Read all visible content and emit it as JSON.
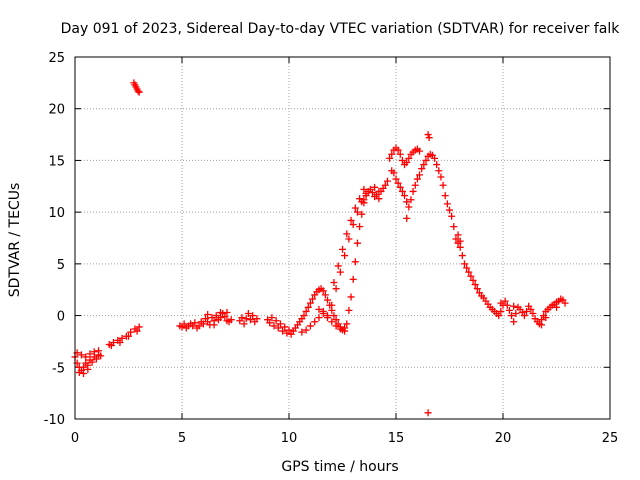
{
  "chart_data": {
    "type": "scatter",
    "title": "Day 091 of 2023, Sidereal Day-to-day VTEC variation (SDTVAR) for receiver falk",
    "xlabel": "GPS time / hours",
    "ylabel": "SDTVAR / TECUs",
    "xlim": [
      0,
      25
    ],
    "ylim": [
      -10,
      25
    ],
    "xticks": [
      "0",
      "5",
      "10",
      "15",
      "20",
      "25"
    ],
    "yticks": [
      "-10",
      "-5",
      "0",
      "5",
      "10",
      "15",
      "20",
      "25"
    ],
    "grid": true,
    "marker": "+",
    "color": "#ff0000",
    "series": [
      {
        "name": "falk",
        "points": [
          [
            0.0,
            -4.0
          ],
          [
            0.1,
            -4.6
          ],
          [
            0.2,
            -5.0
          ],
          [
            0.3,
            -5.3
          ],
          [
            0.4,
            -5.0
          ],
          [
            0.5,
            -4.6
          ],
          [
            0.6,
            -4.8
          ],
          [
            0.7,
            -4.3
          ],
          [
            0.8,
            -4.5
          ],
          [
            0.9,
            -4.0
          ],
          [
            1.0,
            -4.2
          ],
          [
            1.1,
            -3.8
          ],
          [
            1.2,
            -3.9
          ],
          [
            0.1,
            -3.6
          ],
          [
            0.3,
            -3.8
          ],
          [
            0.5,
            -4.0
          ],
          [
            0.7,
            -3.7
          ],
          [
            0.9,
            -3.5
          ],
          [
            1.1,
            -3.4
          ],
          [
            0.2,
            -5.5
          ],
          [
            0.4,
            -5.6
          ],
          [
            0.6,
            -5.2
          ],
          [
            1.6,
            -2.8
          ],
          [
            1.8,
            -2.6
          ],
          [
            2.0,
            -2.4
          ],
          [
            2.2,
            -2.2
          ],
          [
            2.4,
            -2.0
          ],
          [
            2.6,
            -1.6
          ],
          [
            2.8,
            -1.3
          ],
          [
            3.0,
            -1.1
          ],
          [
            1.7,
            -2.9
          ],
          [
            2.1,
            -2.6
          ],
          [
            2.5,
            -2.0
          ],
          [
            2.9,
            -1.5
          ],
          [
            2.75,
            22.5
          ],
          [
            2.8,
            22.3
          ],
          [
            2.85,
            22.1
          ],
          [
            2.9,
            21.9
          ],
          [
            2.95,
            21.7
          ],
          [
            3.0,
            21.6
          ],
          [
            4.9,
            -1.0
          ],
          [
            5.0,
            -1.1
          ],
          [
            5.1,
            -0.8
          ],
          [
            5.2,
            -1.2
          ],
          [
            5.3,
            -1.0
          ],
          [
            5.4,
            -0.8
          ],
          [
            5.5,
            -1.0
          ],
          [
            5.6,
            -0.7
          ],
          [
            5.7,
            -1.2
          ],
          [
            5.8,
            -1.0
          ],
          [
            5.9,
            -0.6
          ],
          [
            6.0,
            -0.8
          ],
          [
            6.1,
            -0.3
          ],
          [
            6.2,
            -0.6
          ],
          [
            6.3,
            -0.9
          ],
          [
            6.4,
            -0.2
          ],
          [
            6.5,
            -0.5
          ],
          [
            6.6,
            0.0
          ],
          [
            6.7,
            -0.4
          ],
          [
            6.8,
            -0.2
          ],
          [
            6.9,
            0.2
          ],
          [
            7.0,
            -0.1
          ],
          [
            7.1,
            0.3
          ],
          [
            7.2,
            -0.6
          ],
          [
            7.3,
            -0.4
          ],
          [
            6.2,
            0.1
          ],
          [
            6.5,
            -0.9
          ],
          [
            6.8,
            0.3
          ],
          [
            7.1,
            -0.5
          ],
          [
            7.7,
            -0.5
          ],
          [
            7.8,
            -0.2
          ],
          [
            7.9,
            -0.8
          ],
          [
            8.0,
            -0.3
          ],
          [
            8.1,
            0.2
          ],
          [
            8.2,
            -0.4
          ],
          [
            8.3,
            0.0
          ],
          [
            8.4,
            -0.6
          ],
          [
            8.5,
            -0.3
          ],
          [
            9.0,
            -0.4
          ],
          [
            9.1,
            -0.7
          ],
          [
            9.2,
            -0.2
          ],
          [
            9.3,
            -1.0
          ],
          [
            9.4,
            -0.5
          ],
          [
            9.5,
            -1.2
          ],
          [
            9.6,
            -0.8
          ],
          [
            9.7,
            -1.5
          ],
          [
            9.8,
            -1.1
          ],
          [
            9.9,
            -1.7
          ],
          [
            10.0,
            -1.4
          ],
          [
            10.1,
            -1.8
          ],
          [
            10.2,
            -1.5
          ],
          [
            10.3,
            -1.2
          ],
          [
            10.4,
            -0.9
          ],
          [
            10.5,
            -0.6
          ],
          [
            10.6,
            -0.3
          ],
          [
            10.7,
            0.0
          ],
          [
            10.8,
            0.4
          ],
          [
            10.9,
            0.8
          ],
          [
            11.0,
            1.2
          ],
          [
            11.1,
            1.6
          ],
          [
            11.2,
            2.0
          ],
          [
            11.3,
            2.3
          ],
          [
            11.4,
            2.5
          ],
          [
            11.5,
            2.6
          ],
          [
            11.6,
            2.4
          ],
          [
            11.7,
            2.0
          ],
          [
            11.8,
            1.5
          ],
          [
            11.9,
            1.0
          ],
          [
            12.0,
            0.5
          ],
          [
            12.1,
            0.0
          ],
          [
            12.2,
            -0.4
          ],
          [
            12.3,
            -0.8
          ],
          [
            12.4,
            -1.1
          ],
          [
            12.5,
            -1.4
          ],
          [
            12.6,
            -1.2
          ],
          [
            12.7,
            -0.8
          ],
          [
            12.8,
            0.5
          ],
          [
            12.9,
            1.8
          ],
          [
            13.0,
            3.5
          ],
          [
            13.1,
            5.2
          ],
          [
            13.2,
            7.0
          ],
          [
            13.3,
            8.6
          ],
          [
            13.4,
            9.8
          ],
          [
            13.5,
            10.9
          ],
          [
            13.6,
            11.6
          ],
          [
            13.7,
            12.0
          ],
          [
            13.8,
            12.2
          ],
          [
            13.9,
            11.9
          ],
          [
            14.0,
            11.5
          ],
          [
            14.1,
            11.7
          ],
          [
            14.2,
            11.3
          ],
          [
            14.3,
            12.0
          ],
          [
            14.4,
            12.3
          ],
          [
            14.5,
            12.6
          ],
          [
            11.8,
            0.0
          ],
          [
            12.0,
            1.0
          ],
          [
            12.2,
            2.6
          ],
          [
            12.4,
            4.2
          ],
          [
            12.6,
            5.8
          ],
          [
            12.8,
            7.4
          ],
          [
            13.0,
            8.8
          ],
          [
            13.2,
            10.0
          ],
          [
            13.4,
            11.0
          ],
          [
            13.6,
            11.8
          ],
          [
            12.1,
            3.2
          ],
          [
            12.3,
            4.8
          ],
          [
            12.5,
            6.4
          ],
          [
            12.7,
            7.9
          ],
          [
            12.9,
            9.2
          ],
          [
            13.1,
            10.4
          ],
          [
            13.3,
            11.3
          ],
          [
            13.5,
            12.2
          ],
          [
            11.4,
            0.6
          ],
          [
            11.6,
            0.2
          ],
          [
            11.8,
            -0.2
          ],
          [
            12.0,
            -0.6
          ],
          [
            12.2,
            -1.0
          ],
          [
            12.4,
            -1.3
          ],
          [
            12.6,
            -1.5
          ],
          [
            10.6,
            -1.6
          ],
          [
            10.8,
            -1.4
          ],
          [
            11.0,
            -1.0
          ],
          [
            11.2,
            -0.6
          ],
          [
            11.4,
            -0.2
          ],
          [
            11.6,
            0.4
          ],
          [
            13.5,
            11.2
          ],
          [
            14.0,
            12.4
          ],
          [
            14.2,
            12.0
          ],
          [
            14.6,
            13.0
          ],
          [
            14.8,
            14.0
          ],
          [
            14.7,
            15.2
          ],
          [
            14.8,
            15.6
          ],
          [
            14.9,
            16.0
          ],
          [
            15.0,
            16.2
          ],
          [
            15.1,
            16.0
          ],
          [
            15.2,
            15.6
          ],
          [
            15.3,
            15.0
          ],
          [
            15.4,
            14.6
          ],
          [
            15.5,
            14.8
          ],
          [
            15.6,
            15.2
          ],
          [
            15.7,
            15.6
          ],
          [
            15.8,
            15.8
          ],
          [
            15.9,
            16.0
          ],
          [
            16.0,
            16.1
          ],
          [
            16.1,
            15.9
          ],
          [
            14.9,
            13.8
          ],
          [
            15.0,
            13.2
          ],
          [
            15.1,
            12.8
          ],
          [
            15.2,
            12.4
          ],
          [
            15.3,
            12.0
          ],
          [
            15.4,
            11.6
          ],
          [
            15.5,
            11.0
          ],
          [
            15.6,
            10.5
          ],
          [
            15.7,
            11.2
          ],
          [
            15.8,
            12.0
          ],
          [
            15.9,
            12.6
          ],
          [
            16.0,
            13.2
          ],
          [
            16.1,
            13.6
          ],
          [
            16.2,
            14.2
          ],
          [
            16.3,
            14.6
          ],
          [
            16.4,
            15.0
          ],
          [
            16.5,
            15.4
          ],
          [
            16.6,
            15.6
          ],
          [
            16.7,
            15.5
          ],
          [
            16.8,
            15.2
          ],
          [
            16.9,
            14.6
          ],
          [
            17.0,
            14.0
          ],
          [
            17.1,
            13.4
          ],
          [
            17.2,
            12.6
          ],
          [
            17.3,
            11.6
          ],
          [
            17.4,
            10.8
          ],
          [
            17.5,
            10.2
          ],
          [
            17.6,
            9.6
          ],
          [
            17.7,
            8.6
          ],
          [
            17.8,
            7.4
          ],
          [
            17.9,
            7.0
          ],
          [
            18.0,
            6.6
          ],
          [
            18.1,
            5.8
          ],
          [
            18.2,
            5.0
          ],
          [
            18.3,
            4.6
          ],
          [
            18.4,
            4.2
          ],
          [
            18.5,
            3.8
          ],
          [
            18.6,
            3.4
          ],
          [
            18.7,
            3.0
          ],
          [
            18.8,
            2.6
          ],
          [
            18.9,
            2.2
          ],
          [
            19.0,
            1.9
          ],
          [
            19.1,
            1.7
          ],
          [
            19.2,
            1.4
          ],
          [
            19.3,
            1.1
          ],
          [
            19.4,
            0.8
          ],
          [
            19.5,
            0.6
          ],
          [
            19.6,
            0.4
          ],
          [
            19.7,
            0.2
          ],
          [
            19.8,
            0.0
          ],
          [
            19.9,
            0.4
          ],
          [
            20.0,
            1.0
          ],
          [
            20.1,
            1.4
          ],
          [
            20.2,
            1.0
          ],
          [
            20.3,
            0.5
          ],
          [
            20.4,
            0.0
          ],
          [
            20.5,
            -0.6
          ],
          [
            20.6,
            0.2
          ],
          [
            20.7,
            0.8
          ],
          [
            20.8,
            0.6
          ],
          [
            20.9,
            0.3
          ],
          [
            21.0,
            0.0
          ],
          [
            21.1,
            0.4
          ],
          [
            21.2,
            0.9
          ],
          [
            21.3,
            0.6
          ],
          [
            21.4,
            0.2
          ],
          [
            21.5,
            -0.3
          ],
          [
            21.6,
            -0.6
          ],
          [
            21.7,
            -0.8
          ],
          [
            21.8,
            -0.4
          ],
          [
            21.9,
            0.0
          ],
          [
            22.0,
            0.4
          ],
          [
            22.1,
            0.6
          ],
          [
            22.2,
            0.8
          ],
          [
            22.3,
            1.0
          ],
          [
            22.4,
            1.1
          ],
          [
            22.5,
            1.3
          ],
          [
            22.6,
            1.4
          ],
          [
            22.7,
            1.6
          ],
          [
            22.8,
            1.5
          ],
          [
            22.9,
            1.2
          ],
          [
            22.5,
            0.8
          ],
          [
            22.0,
            -0.2
          ],
          [
            21.8,
            -0.9
          ],
          [
            20.5,
            0.9
          ],
          [
            19.9,
            1.2
          ],
          [
            15.5,
            9.4
          ],
          [
            16.5,
            17.5
          ],
          [
            16.55,
            17.2
          ],
          [
            16.5,
            -9.4
          ],
          [
            17.9,
            7.8
          ],
          [
            18.0,
            7.2
          ]
        ]
      }
    ]
  }
}
